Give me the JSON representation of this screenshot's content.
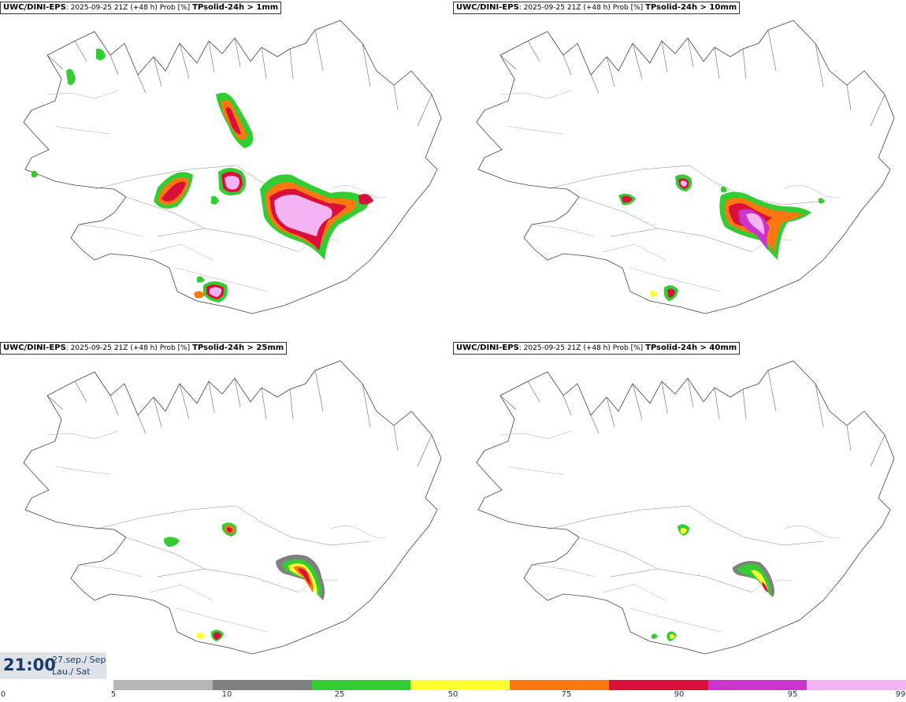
{
  "panels": [
    {
      "source": "UWC/DINI-EPS",
      "meta": "2025-09-25 21Z (+48 h) Prob [%]",
      "variable": "TPsolid-24h > 1mm"
    },
    {
      "source": "UWC/DINI-EPS",
      "meta": "2025-09-25 21Z (+48 h) Prob [%]",
      "variable": "TPsolid-24h > 10mm"
    },
    {
      "source": "UWC/DINI-EPS",
      "meta": "2025-09-25 21Z (+48 h) Prob [%]",
      "variable": "TPsolid-24h > 25mm"
    },
    {
      "source": "UWC/DINI-EPS",
      "meta": "2025-09-25 21Z (+48 h) Prob [%]",
      "variable": "TPsolid-24h > 40mm"
    }
  ],
  "valid_time": {
    "time": "21:00",
    "date": "27.sep./ Sep",
    "day": "Lau./ Sat"
  },
  "colorbar": {
    "ticks": [
      "0",
      "5",
      "10",
      "25",
      "50",
      "75",
      "90",
      "95",
      "99"
    ],
    "colors": [
      "#b5b5b5",
      "#808080",
      "#33cc33",
      "#ffff33",
      "#ff7711",
      "#d8103a",
      "#cc33cc",
      "#f4b4f4"
    ]
  }
}
